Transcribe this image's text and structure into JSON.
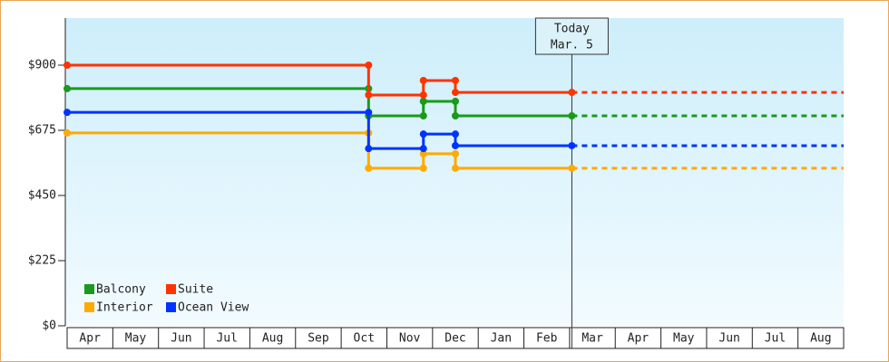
{
  "chart_data": {
    "type": "line",
    "step": true,
    "categories": [
      "Apr",
      "May",
      "Jun",
      "Jul",
      "Aug",
      "Sep",
      "Oct",
      "Nov",
      "Dec",
      "Jan",
      "Feb",
      "Mar",
      "Apr",
      "May",
      "Jun",
      "Jul",
      "Aug"
    ],
    "x": [
      0,
      6.6,
      6.6,
      7.8,
      7.8,
      8.5,
      8.5,
      11.05
    ],
    "xlim": [
      0,
      17
    ],
    "series": [
      {
        "name": "Balcony",
        "color": "#1a9a1a",
        "values": [
          819,
          819,
          725,
          725,
          775,
          775,
          725,
          725
        ]
      },
      {
        "name": "Suite",
        "color": "#ff3300",
        "values": [
          900,
          900,
          797,
          797,
          847,
          847,
          806,
          806
        ]
      },
      {
        "name": "Interior",
        "color": "#ffaa00",
        "values": [
          666,
          666,
          544,
          544,
          594,
          594,
          544,
          544
        ]
      },
      {
        "name": "Ocean View",
        "color": "#0033ff",
        "values": [
          737,
          737,
          612,
          612,
          662,
          662,
          622,
          622
        ]
      }
    ],
    "ylim": [
      0,
      1062.5
    ],
    "yticks": [
      {
        "value": 0,
        "label": "$0"
      },
      {
        "value": 225,
        "label": "$225"
      },
      {
        "value": 450,
        "label": "$450"
      },
      {
        "value": 675,
        "label": "$675"
      },
      {
        "value": 900,
        "label": "$900"
      }
    ],
    "annotation": {
      "x": 11.05,
      "lines": [
        "Today",
        "Mar. 5"
      ]
    },
    "projection": "dashed",
    "legend": "lower left"
  }
}
